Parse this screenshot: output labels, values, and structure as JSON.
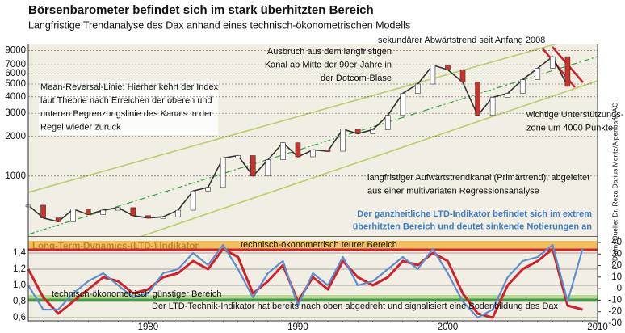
{
  "chart_data": [
    {
      "type": "line",
      "title": "Börsenbarometer befindet sich im stark überhitzten Bereich",
      "subtitle": "Langfristige Trendanalyse des Dax anhand eines technisch-ökonometrischen Modells",
      "source": "FTD/am; Quelle: Dr. Reza Darius Moritz/Alpenbank AG",
      "log_scale": true,
      "x": [
        1972,
        1973,
        1974,
        1975,
        1976,
        1977,
        1978,
        1979,
        1980,
        1981,
        1982,
        1983,
        1984,
        1985,
        1986,
        1987,
        1988,
        1989,
        1990,
        1991,
        1992,
        1993,
        1994,
        1995,
        1996,
        1997,
        1998,
        1999,
        2000,
        2001,
        2002,
        2003,
        2004,
        2005,
        2006,
        2007,
        2008
      ],
      "values": [
        600,
        480,
        450,
        560,
        510,
        550,
        575,
        500,
        480,
        490,
        550,
        770,
        820,
        1370,
        1430,
        1000,
        1330,
        1790,
        1400,
        1580,
        1545,
        2270,
        2100,
        2250,
        2890,
        4250,
        5000,
        6960,
        6430,
        5160,
        2890,
        3965,
        4250,
        5400,
        6600,
        8070,
        4800
      ],
      "color": "#333333",
      "xlim": [
        1972,
        2010
      ],
      "ylim": [
        350,
        10000
      ],
      "yticks": [
        1000,
        2000,
        3000,
        4000,
        5000,
        6000,
        7000,
        9000
      ],
      "grid": true,
      "annotations": [
        {
          "lines": [
            "sekundärer Abwärtstrend seit Anfang 2008"
          ]
        },
        {
          "lines": [
            "Ausbruch aus dem langfristigen",
            "Kanal ab Mitte der 90er-Jahre in",
            "der Dotcom-Blase"
          ]
        },
        {
          "lines": [
            "Mean-Reversal-Linie: Hierher kehrt der Index",
            "laut Theorie nach Erreichen der oberen und",
            "unteren Begrenzungslinie des Kanals in der",
            "Regel wieder zurück"
          ]
        },
        {
          "lines": [
            "wichtige Unterstützungs-",
            "zone um 4000 Punkte"
          ]
        },
        {
          "lines": [
            "langfristiger Aufwärtstrendkanal (Primärtrend), abgeleitet",
            "aus einer multivariaten Regressionsanalyse"
          ]
        }
      ]
    },
    {
      "type": "line",
      "title": "Long-Term-Dynamics-(LTD-) Indikator",
      "x": [
        1972,
        1973,
        1974,
        1975,
        1976,
        1977,
        1978,
        1979,
        1980,
        1981,
        1982,
        1983,
        1984,
        1985,
        1986,
        1987,
        1988,
        1989,
        1990,
        1991,
        1992,
        1993,
        1994,
        1995,
        1996,
        1997,
        1998,
        1999,
        2000,
        2001,
        2002,
        2003,
        2004,
        2005,
        2006,
        2007,
        2008,
        2009
      ],
      "series": [
        {
          "color": "#d4202a",
          "values": [
            1.2,
            0.85,
            0.65,
            0.8,
            0.95,
            1.1,
            1.05,
            0.9,
            0.95,
            1.1,
            1.15,
            1.3,
            1.2,
            1.45,
            1.35,
            0.9,
            1.05,
            1.25,
            0.8,
            1.1,
            0.95,
            1.3,
            1.1,
            1.0,
            1.1,
            1.3,
            1.25,
            1.4,
            1.3,
            0.9,
            0.65,
            0.6,
            1.0,
            1.2,
            1.3,
            1.45,
            0.75,
            0.7
          ]
        },
        {
          "color": "#5b8fd0",
          "values": [
            1.0,
            0.7,
            0.7,
            0.9,
            1.05,
            1.15,
            1.0,
            0.85,
            0.9,
            1.15,
            1.2,
            1.4,
            1.25,
            1.5,
            1.2,
            0.85,
            1.15,
            1.3,
            0.75,
            1.15,
            1.0,
            1.35,
            1.0,
            1.05,
            1.2,
            1.35,
            1.2,
            1.45,
            1.15,
            0.8,
            0.6,
            0.7,
            1.1,
            1.3,
            1.35,
            1.5,
            0.8,
            1.45
          ]
        }
      ],
      "zones": [
        {
          "from": 1.44,
          "to": 1.55,
          "color": "#f0b030",
          "line_color": "#d4202a"
        },
        {
          "from": 0.82,
          "to": 0.88,
          "color": "#a6d07a",
          "line_color": "#3aa040"
        }
      ],
      "xlim": [
        1972,
        2010
      ],
      "xticks": [
        1980,
        1990,
        2000,
        2010
      ],
      "ylim": [
        0.56,
        1.6
      ],
      "yticks": [
        {
          "value": 0.6,
          "label": "0,6"
        },
        {
          "value": 0.8,
          "label": "0,8"
        },
        {
          "value": 1.0,
          "label": "1,0"
        },
        {
          "value": 1.2,
          "label": "1,2"
        },
        {
          "value": 1.4,
          "label": "1,4"
        }
      ],
      "y2lim": [
        -27.9,
        44.9
      ],
      "y2ticks": [
        -30,
        -20,
        -10,
        0,
        10,
        20,
        30,
        40
      ],
      "annotations": [
        {
          "lines": [
            "Der ganzheitliche LTD-Indikator befindet sich im extrem",
            "überhitzten Bereich und deutet sinkende Notierungen an"
          ],
          "color": "#3f7fc8"
        },
        {
          "lines": [
            "technisch-ökonometrisch teurer Bereich"
          ]
        },
        {
          "lines": [
            "technisch-ökonometrisch günstiger Bereich"
          ]
        },
        {
          "lines": [
            "Der LTD-Technik-Indikator hat bereits nach oben abgedreht und signalisiert eine Bodenbildung des Dax"
          ]
        }
      ]
    }
  ]
}
